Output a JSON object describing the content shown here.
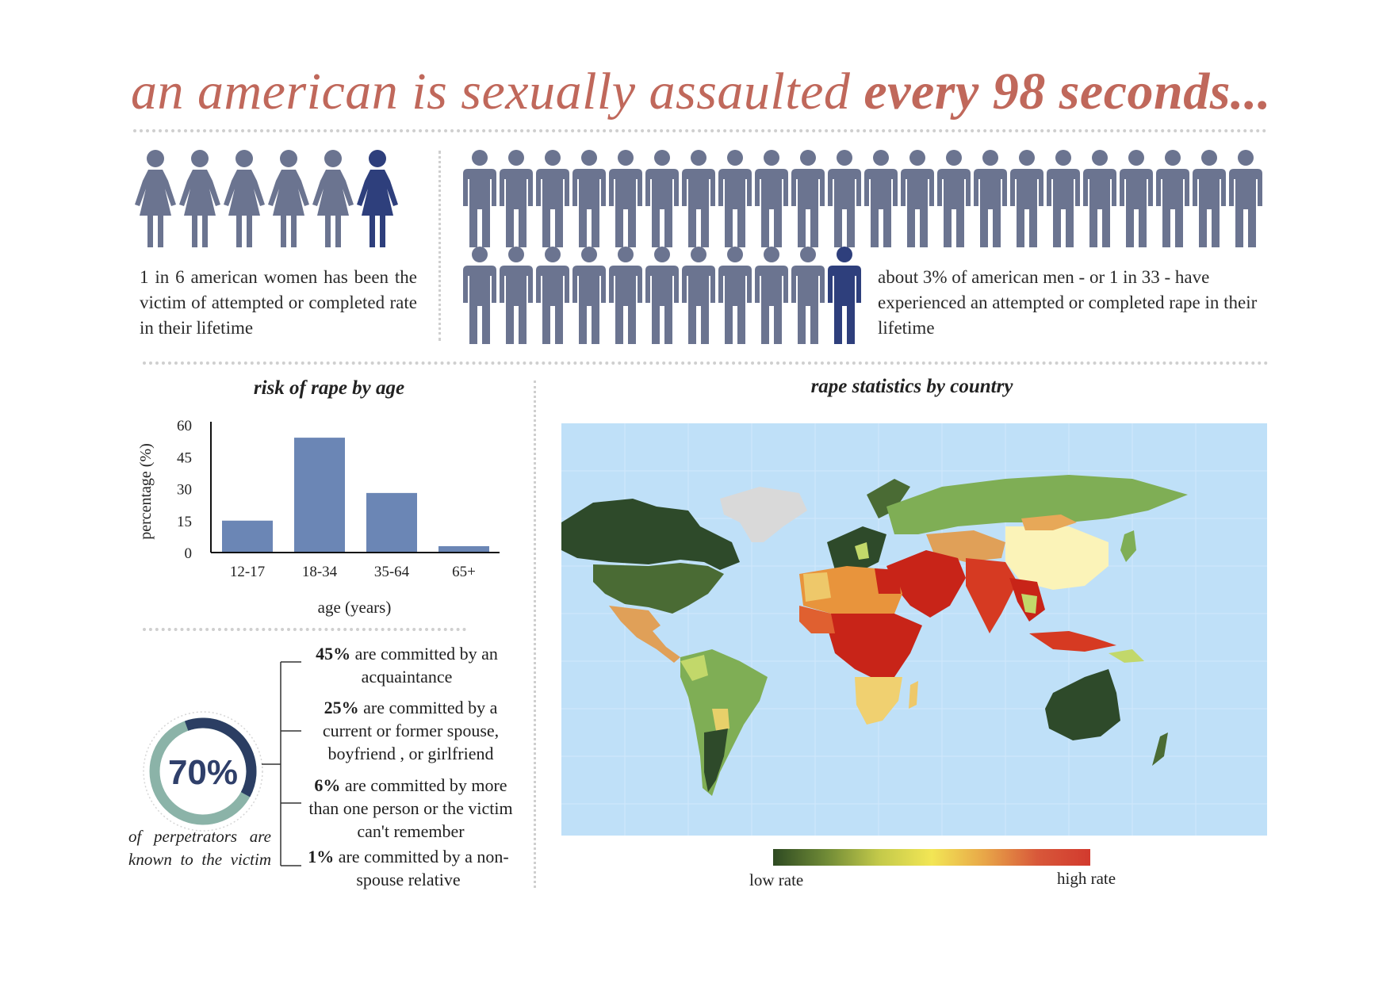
{
  "title": {
    "prefix": "an american is sexually assaulted",
    "emphasis": "every 98 seconds..."
  },
  "women": {
    "total": 6,
    "highlighted": 1,
    "text": "1 in 6 american women has been the victim of attempted or completed rate in their lifetime"
  },
  "men": {
    "total": 33,
    "highlighted": 1,
    "text": "about 3% of american men - or 1 in 33 - have experienced an attempted or completed rape in their lifetime"
  },
  "colors": {
    "figure": "#6b7490",
    "highlight": "#2e3f7c",
    "title": "#c0685b",
    "bar": "#6b86b5",
    "ring_dark": "#2b3e63",
    "ring_light": "#8bb3a8",
    "ocean": "#bfe0f8"
  },
  "chart_data": {
    "type": "bar",
    "title": "risk of rape by age",
    "xlabel": "age (years)",
    "ylabel": "percentage (%)",
    "categories": [
      "12-17",
      "18-34",
      "35-64",
      "65+"
    ],
    "values": [
      15,
      54,
      28,
      3
    ],
    "ylim": [
      0,
      60
    ],
    "yticks": [
      0,
      15,
      30,
      45,
      60
    ],
    "grid": false
  },
  "known": {
    "percent": 70,
    "percent_label": "70%",
    "caption": "of perpetrators are known to the victim",
    "items": [
      {
        "pct": "45%",
        "text": " are committed by an acquaintance"
      },
      {
        "pct": "25%",
        "text": " are committed by a current or former spouse, boyfriend , or girlfriend"
      },
      {
        "pct": "6%",
        "text": " are committed by more than one person or the victim can't remember"
      },
      {
        "pct": "1%",
        "text": " are committed by a non-spouse relative"
      }
    ]
  },
  "map": {
    "title": "rape statistics by country",
    "legend_low": "low rate",
    "legend_high": "high rate"
  }
}
